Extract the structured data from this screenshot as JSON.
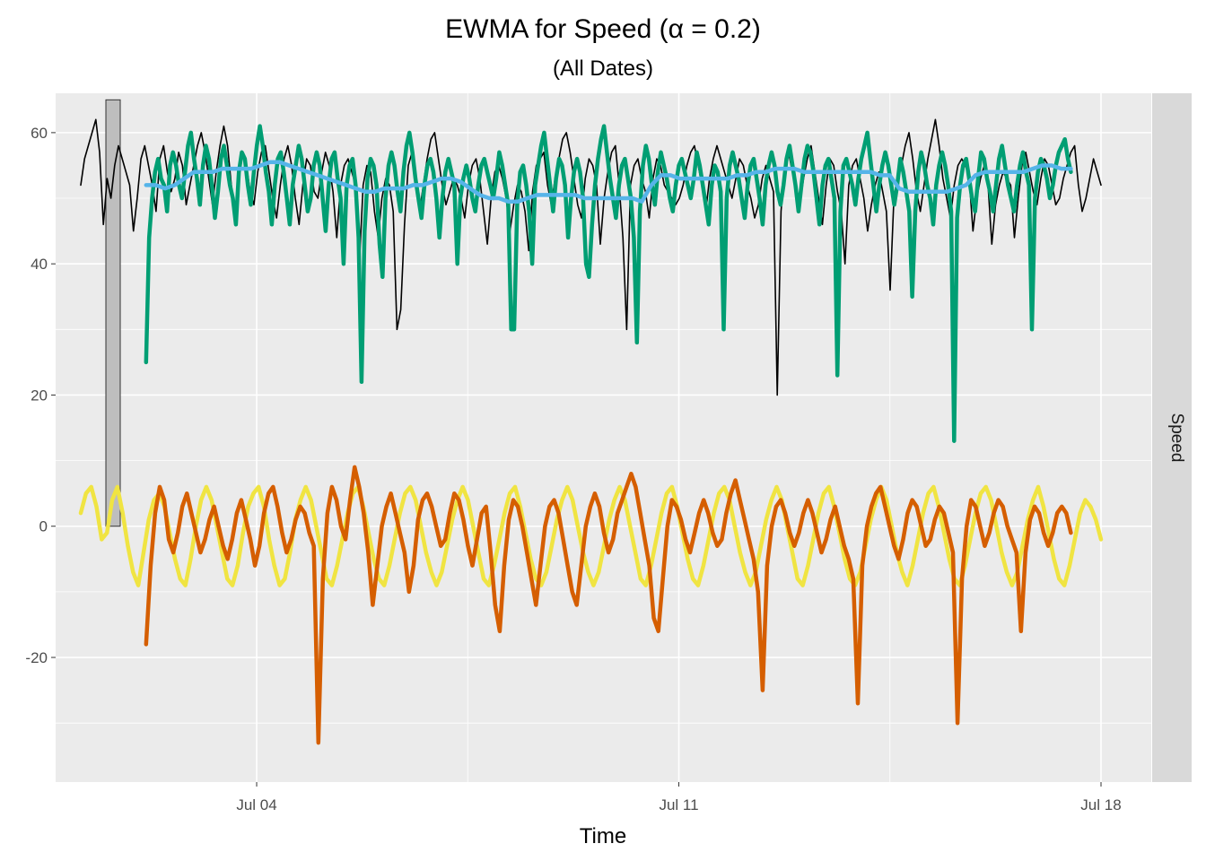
{
  "chart_data": {
    "type": "line",
    "title": "EWMA for Speed (α = 0.2)",
    "subtitle": "(All Dates)",
    "xlabel": "Time",
    "ylabel": "",
    "facet_label": "Speed",
    "x_ticks": [
      "Jul 04",
      "Jul 11",
      "Jul 18"
    ],
    "x_tick_dates": [
      "2023-07-04",
      "2023-07-11",
      "2023-07-18"
    ],
    "xlim": [
      "2023-07-00T16:00",
      "2023-07-18T20:00"
    ],
    "ylim": [
      -39,
      66
    ],
    "y_ticks": [
      -20,
      0,
      20,
      40,
      60
    ],
    "grid": true,
    "range_bar": {
      "min": 0,
      "max": 65
    },
    "colors": {
      "raw": "#000000",
      "smooth": "#009E73",
      "ewma": "#56B4E9",
      "resid_a": "#F0E442",
      "resid_b": "#D55E00"
    },
    "series": [
      {
        "x_start": "2023-07-01T02:00",
        "x_end": "2023-07-18T00:00",
        "values": [
          52,
          56,
          58,
          60,
          62,
          57,
          46,
          53,
          50,
          55,
          58,
          56,
          54,
          52,
          45,
          50,
          56,
          58,
          55,
          52,
          48,
          56,
          58,
          54,
          51,
          53,
          57,
          55,
          49,
          52,
          55,
          58,
          60,
          57,
          53,
          49,
          54,
          58,
          61,
          58,
          52,
          48,
          53,
          57,
          55,
          51,
          49,
          54,
          57,
          58,
          54,
          50,
          47,
          52,
          56,
          58,
          55,
          50,
          46,
          52,
          56,
          55,
          51,
          50,
          54,
          57,
          55,
          51,
          44,
          52,
          55,
          56,
          54,
          52,
          40,
          52,
          55,
          54,
          48,
          44,
          50,
          53,
          52,
          48,
          30,
          33,
          46,
          55,
          57,
          52,
          48,
          52,
          56,
          59,
          60,
          56,
          52,
          49,
          51,
          53,
          52,
          50,
          47,
          52,
          55,
          56,
          53,
          48,
          43,
          50,
          54,
          55,
          53,
          50,
          45,
          49,
          52,
          51,
          48,
          42,
          51,
          55,
          56,
          57,
          52,
          49,
          53,
          56,
          59,
          60,
          57,
          53,
          49,
          47,
          53,
          56,
          55,
          52,
          43,
          50,
          54,
          57,
          58,
          52,
          44,
          30,
          52,
          55,
          56,
          53,
          51,
          47,
          53,
          56,
          55,
          52,
          51,
          50,
          49,
          50,
          52,
          55,
          57,
          58,
          55,
          52,
          48,
          53,
          56,
          58,
          56,
          54,
          52,
          50,
          53,
          56,
          55,
          52,
          50,
          47,
          49,
          53,
          55,
          53,
          51,
          20,
          48,
          55,
          57,
          54,
          52,
          49,
          53,
          56,
          58,
          54,
          50,
          46,
          52,
          56,
          55,
          51,
          48,
          40,
          52,
          55,
          56,
          53,
          50,
          45,
          49,
          52,
          54,
          51,
          48,
          36,
          50,
          53,
          55,
          58,
          60,
          56,
          51,
          48,
          52,
          56,
          59,
          62,
          58,
          53,
          50,
          47,
          52,
          55,
          56,
          55,
          53,
          45,
          50,
          53,
          55,
          52,
          43,
          49,
          52,
          54,
          53,
          52,
          44,
          50,
          55,
          57,
          54,
          51,
          49,
          53,
          56,
          55,
          52,
          49,
          50,
          53,
          55,
          57,
          58,
          52,
          48,
          50,
          53,
          56,
          54,
          52
        ]
      },
      {
        "x_start": "2023-07-02T04:00",
        "x_end": "2023-07-17T12:00",
        "values": [
          25,
          44,
          50,
          54,
          56,
          53,
          52,
          48,
          55,
          57,
          55,
          52,
          50,
          54,
          58,
          60,
          56,
          53,
          49,
          55,
          58,
          56,
          52,
          47,
          51,
          56,
          58,
          55,
          52,
          50,
          46,
          54,
          57,
          56,
          52,
          49,
          54,
          58,
          61,
          58,
          54,
          51,
          46,
          52,
          56,
          57,
          54,
          50,
          46,
          52,
          55,
          58,
          56,
          52,
          48,
          50,
          55,
          57,
          55,
          50,
          45,
          52,
          56,
          57,
          53,
          50,
          40,
          52,
          55,
          56,
          52,
          44,
          22,
          45,
          53,
          56,
          55,
          52,
          43,
          38,
          50,
          55,
          57,
          55,
          51,
          48,
          54,
          58,
          60,
          57,
          53,
          50,
          47,
          52,
          55,
          56,
          54,
          50,
          44,
          50,
          54,
          56,
          54,
          52,
          40,
          50,
          53,
          55,
          53,
          50,
          48,
          52,
          55,
          56,
          54,
          52,
          50,
          53,
          57,
          55,
          52,
          49,
          30,
          30,
          49,
          54,
          55,
          52,
          48,
          40,
          52,
          55,
          58,
          60,
          56,
          52,
          48,
          53,
          56,
          55,
          52,
          44,
          50,
          54,
          56,
          54,
          50,
          40,
          38,
          46,
          52,
          56,
          59,
          61,
          57,
          53,
          50,
          47,
          52,
          55,
          56,
          53,
          50,
          44,
          28,
          48,
          55,
          58,
          56,
          52,
          49,
          54,
          57,
          55,
          53,
          50,
          48,
          52,
          55,
          56,
          54,
          52,
          50,
          53,
          57,
          55,
          52,
          49,
          46,
          52,
          55,
          54,
          51,
          30,
          50,
          55,
          57,
          55,
          53,
          50,
          47,
          52,
          55,
          56,
          53,
          50,
          46,
          52,
          55,
          57,
          55,
          51,
          49,
          52,
          56,
          58,
          55,
          52,
          48,
          52,
          56,
          58,
          57,
          54,
          50,
          46,
          52,
          55,
          56,
          53,
          50,
          23,
          48,
          55,
          56,
          54,
          52,
          49,
          53,
          56,
          58,
          60,
          56,
          52,
          48,
          52,
          55,
          57,
          55,
          52,
          49,
          52,
          56,
          54,
          51,
          48,
          35,
          48,
          54,
          57,
          55,
          52,
          50,
          46,
          52,
          55,
          57,
          55,
          52,
          48,
          13,
          47,
          52,
          55,
          56,
          53,
          50,
          48,
          53,
          57,
          56,
          53,
          51,
          48,
          52,
          56,
          58,
          55,
          52,
          50,
          48,
          52,
          55,
          57,
          54,
          52,
          30,
          50,
          54,
          56,
          55,
          53,
          50,
          52,
          55,
          57,
          58,
          59,
          56,
          54
        ]
      },
      {
        "x_start": "2023-07-02T04:00",
        "x_end": "2023-07-17T12:00",
        "values": [
          52,
          52,
          51.5,
          52,
          53,
          54,
          54,
          54,
          54.5,
          54.5,
          54.5,
          54.5,
          55,
          55.5,
          55.5,
          55,
          54.5,
          54,
          53.5,
          53,
          52.5,
          52,
          51.5,
          51,
          51,
          51.5,
          51.5,
          51.5,
          52,
          52,
          52.5,
          53,
          53,
          52.5,
          51.5,
          50.5,
          50,
          50,
          49.5,
          49.5,
          50,
          50.5,
          50.5,
          50.5,
          50.5,
          50.5,
          50,
          50,
          50,
          50,
          50,
          50,
          49.5,
          52,
          53.5,
          53.5,
          53,
          53,
          53,
          53,
          53,
          53,
          53.5,
          53.5,
          54,
          54,
          54.5,
          54.5,
          54.5,
          54,
          54,
          54,
          54,
          54,
          54,
          54,
          54,
          53.5,
          53.5,
          51.5,
          51,
          51,
          51,
          51,
          51,
          51.5,
          52,
          53.5,
          54,
          54,
          54,
          54,
          54,
          54.5,
          55,
          55,
          54.5,
          54.5
        ]
      },
      {
        "x_start": "2023-07-01T02:00",
        "x_end": "2023-07-18T00:00",
        "values": [
          2,
          5,
          6,
          3,
          -2,
          -1,
          4,
          6,
          2,
          -3,
          -7,
          -9,
          -4,
          1,
          4,
          5,
          3,
          -1,
          -5,
          -8,
          -9,
          -5,
          0,
          4,
          6,
          4,
          0,
          -4,
          -8,
          -9,
          -6,
          -1,
          3,
          5,
          6,
          3,
          -2,
          -6,
          -9,
          -8,
          -4,
          1,
          4,
          6,
          4,
          0,
          -4,
          -8,
          -9,
          -6,
          -2,
          2,
          5,
          6,
          3,
          -1,
          -5,
          -8,
          -9,
          -6,
          -2,
          2,
          5,
          6,
          4,
          0,
          -4,
          -7,
          -9,
          -7,
          -3,
          1,
          4,
          6,
          4,
          0,
          -4,
          -8,
          -9,
          -6,
          -2,
          2,
          5,
          6,
          3,
          -1,
          -5,
          -8,
          -9,
          -7,
          -3,
          1,
          4,
          6,
          4,
          0,
          -4,
          -7,
          -9,
          -7,
          -3,
          1,
          4,
          6,
          4,
          0,
          -4,
          -8,
          -9,
          -6,
          -2,
          2,
          5,
          6,
          3,
          -1,
          -5,
          -8,
          -9,
          -6,
          -2,
          2,
          5,
          6,
          4,
          0,
          -4,
          -7,
          -9,
          -7,
          -3,
          1,
          4,
          6,
          4,
          0,
          -4,
          -8,
          -9,
          -6,
          -2,
          2,
          5,
          6,
          3,
          -1,
          -5,
          -8,
          -9,
          -7,
          -3,
          1,
          4,
          6,
          4,
          0,
          -4,
          -7,
          -9,
          -6,
          -2,
          2,
          5,
          6,
          3,
          -1,
          -5,
          -8,
          -9,
          -6,
          -2,
          2,
          5,
          6,
          4,
          0,
          -4,
          -7,
          -9,
          -7,
          -3,
          1,
          4,
          6,
          3,
          -1,
          -5,
          -8,
          -9,
          -6,
          -2,
          2,
          4,
          3,
          1,
          -2
        ]
      },
      {
        "x_start": "2023-07-02T04:00",
        "x_end": "2023-07-17T12:00",
        "values": [
          -18,
          -6,
          2,
          6,
          4,
          -2,
          -4,
          -1,
          3,
          5,
          2,
          -1,
          -4,
          -2,
          1,
          3,
          0,
          -3,
          -5,
          -2,
          2,
          4,
          1,
          -2,
          -6,
          -3,
          2,
          5,
          6,
          3,
          -1,
          -4,
          -2,
          1,
          3,
          2,
          -1,
          -3,
          -33,
          -8,
          2,
          6,
          4,
          0,
          -2,
          4,
          9,
          6,
          2,
          -4,
          -12,
          -6,
          0,
          3,
          5,
          2,
          -1,
          -4,
          -10,
          -6,
          1,
          4,
          5,
          3,
          0,
          -3,
          -2,
          2,
          5,
          4,
          1,
          -3,
          -6,
          -2,
          2,
          3,
          -4,
          -12,
          -16,
          -6,
          1,
          4,
          3,
          0,
          -4,
          -8,
          -12,
          -6,
          0,
          3,
          4,
          2,
          -2,
          -6,
          -10,
          -12,
          -6,
          0,
          3,
          5,
          3,
          -1,
          -4,
          -2,
          2,
          4,
          6,
          8,
          6,
          2,
          -2,
          -6,
          -14,
          -16,
          -8,
          0,
          4,
          3,
          1,
          -2,
          -4,
          -1,
          2,
          4,
          2,
          -1,
          -3,
          -2,
          2,
          5,
          7,
          4,
          1,
          -2,
          -5,
          -10,
          -25,
          -6,
          0,
          3,
          4,
          2,
          -1,
          -3,
          -1,
          2,
          4,
          2,
          -1,
          -4,
          -2,
          1,
          3,
          0,
          -3,
          -5,
          -8,
          -27,
          -6,
          0,
          3,
          5,
          6,
          3,
          0,
          -3,
          -5,
          -2,
          2,
          4,
          3,
          0,
          -3,
          -2,
          1,
          3,
          2,
          -1,
          -4,
          -30,
          -8,
          0,
          4,
          3,
          0,
          -3,
          -1,
          2,
          4,
          3,
          0,
          -2,
          -4,
          -16,
          -4,
          1,
          3,
          2,
          -1,
          -3,
          -1,
          2,
          3,
          2,
          -1
        ]
      }
    ]
  }
}
